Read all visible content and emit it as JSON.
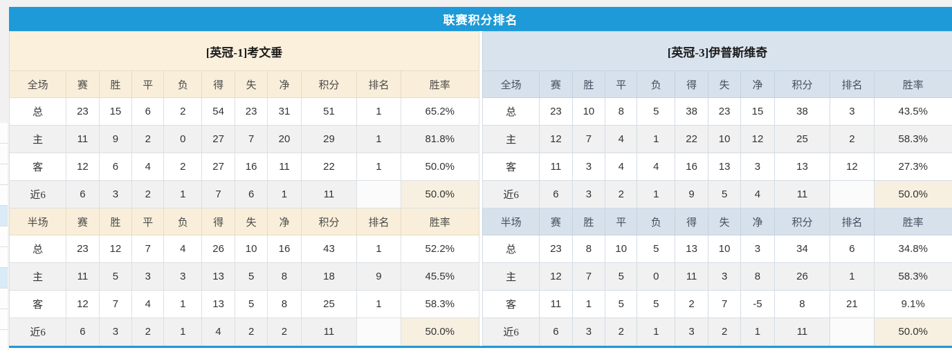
{
  "title": "联赛积分排名",
  "colors": {
    "title_bar_blue": "#1d9ad7",
    "left_header_cream": "#faf0dc",
    "right_header_blue": "#d9e3ee",
    "points_red": "#e6432a",
    "rank_blue": "#3884c8",
    "home_label_red": "#de3c3c",
    "away_label_blue": "#3939d6"
  },
  "tables": [
    {
      "id": "left",
      "theme": "cream",
      "team_header": "[英冠-1]考文垂",
      "sections": [
        {
          "columns": [
            "全场",
            "赛",
            "胜",
            "平",
            "负",
            "得",
            "失",
            "净",
            "积分",
            "排名",
            "胜率"
          ],
          "rows": [
            {
              "label": "总",
              "tone": "dark",
              "values": [
                "23",
                "15",
                "6",
                "2",
                "54",
                "23",
                "31",
                "51",
                "1",
                "65.2%"
              ]
            },
            {
              "label": "主",
              "tone": "red",
              "values": [
                "11",
                "9",
                "2",
                "0",
                "27",
                "7",
                "20",
                "29",
                "1",
                "81.8%"
              ]
            },
            {
              "label": "客",
              "tone": "blue",
              "values": [
                "12",
                "6",
                "4",
                "2",
                "27",
                "16",
                "11",
                "22",
                "1",
                "50.0%"
              ]
            },
            {
              "label": "近6",
              "tone": "dark",
              "values": [
                "6",
                "3",
                "2",
                "1",
                "7",
                "6",
                "1",
                "11",
                "",
                "50.0%"
              ]
            }
          ]
        },
        {
          "columns": [
            "半场",
            "赛",
            "胜",
            "平",
            "负",
            "得",
            "失",
            "净",
            "积分",
            "排名",
            "胜率"
          ],
          "rows": [
            {
              "label": "总",
              "tone": "dark",
              "values": [
                "23",
                "12",
                "7",
                "4",
                "26",
                "10",
                "16",
                "43",
                "1",
                "52.2%"
              ]
            },
            {
              "label": "主",
              "tone": "red",
              "values": [
                "11",
                "5",
                "3",
                "3",
                "13",
                "5",
                "8",
                "18",
                "9",
                "45.5%"
              ]
            },
            {
              "label": "客",
              "tone": "blue",
              "values": [
                "12",
                "7",
                "4",
                "1",
                "13",
                "5",
                "8",
                "25",
                "1",
                "58.3%"
              ]
            },
            {
              "label": "近6",
              "tone": "dark",
              "values": [
                "6",
                "3",
                "2",
                "1",
                "4",
                "2",
                "2",
                "11",
                "",
                "50.0%"
              ]
            }
          ]
        }
      ]
    },
    {
      "id": "right",
      "theme": "blue",
      "team_header": "[英冠-3]伊普斯维奇",
      "sections": [
        {
          "columns": [
            "全场",
            "赛",
            "胜",
            "平",
            "负",
            "得",
            "失",
            "净",
            "积分",
            "排名",
            "胜率"
          ],
          "rows": [
            {
              "label": "总",
              "tone": "dark",
              "values": [
                "23",
                "10",
                "8",
                "5",
                "38",
                "23",
                "15",
                "38",
                "3",
                "43.5%"
              ]
            },
            {
              "label": "主",
              "tone": "red",
              "values": [
                "12",
                "7",
                "4",
                "1",
                "22",
                "10",
                "12",
                "25",
                "2",
                "58.3%"
              ]
            },
            {
              "label": "客",
              "tone": "blue",
              "values": [
                "11",
                "3",
                "4",
                "4",
                "16",
                "13",
                "3",
                "13",
                "12",
                "27.3%"
              ]
            },
            {
              "label": "近6",
              "tone": "dark",
              "values": [
                "6",
                "3",
                "2",
                "1",
                "9",
                "5",
                "4",
                "11",
                "",
                "50.0%"
              ]
            }
          ]
        },
        {
          "columns": [
            "半场",
            "赛",
            "胜",
            "平",
            "负",
            "得",
            "失",
            "净",
            "积分",
            "排名",
            "胜率"
          ],
          "rows": [
            {
              "label": "总",
              "tone": "dark",
              "values": [
                "23",
                "8",
                "10",
                "5",
                "13",
                "10",
                "3",
                "34",
                "6",
                "34.8%"
              ]
            },
            {
              "label": "主",
              "tone": "red",
              "values": [
                "12",
                "7",
                "5",
                "0",
                "11",
                "3",
                "8",
                "26",
                "1",
                "58.3%"
              ]
            },
            {
              "label": "客",
              "tone": "blue",
              "values": [
                "11",
                "1",
                "5",
                "5",
                "2",
                "7",
                "-5",
                "8",
                "21",
                "9.1%"
              ]
            },
            {
              "label": "近6",
              "tone": "dark",
              "values": [
                "6",
                "3",
                "2",
                "1",
                "3",
                "2",
                "1",
                "11",
                "",
                "50.0%"
              ]
            }
          ]
        }
      ]
    }
  ]
}
